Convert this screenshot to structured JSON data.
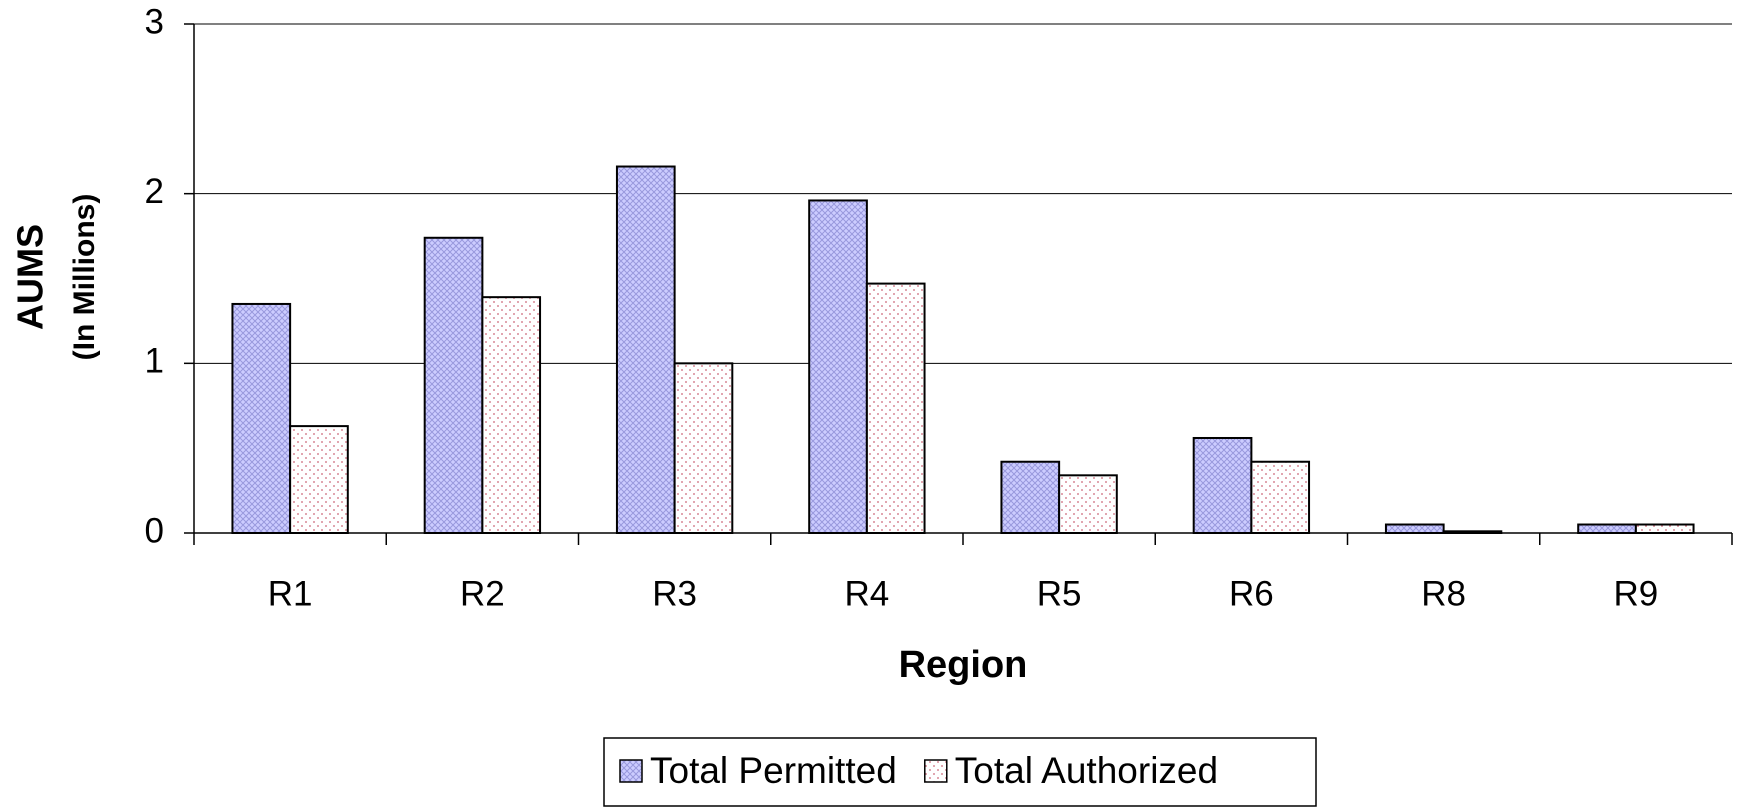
{
  "chart_data": {
    "type": "bar",
    "ylabel": "AUMS",
    "ylabel_sub": "(In Millions)",
    "xlabel": "Region",
    "categories": [
      "R1",
      "R2",
      "R3",
      "R4",
      "R5",
      "R6",
      "R8",
      "R9"
    ],
    "series": [
      {
        "name": "Total Permitted",
        "color": "#ccccff",
        "values": [
          1.35,
          1.74,
          2.16,
          1.96,
          0.42,
          0.56,
          0.05,
          0.05
        ]
      },
      {
        "name": "Total Authorized",
        "color": "#ffffff",
        "values": [
          0.63,
          1.39,
          1.0,
          1.47,
          0.34,
          0.42,
          0.01,
          0.05
        ]
      }
    ],
    "ylim": [
      0,
      3
    ],
    "yticks": [
      0,
      1,
      2,
      3
    ],
    "grid": true,
    "legend": "bottom"
  }
}
